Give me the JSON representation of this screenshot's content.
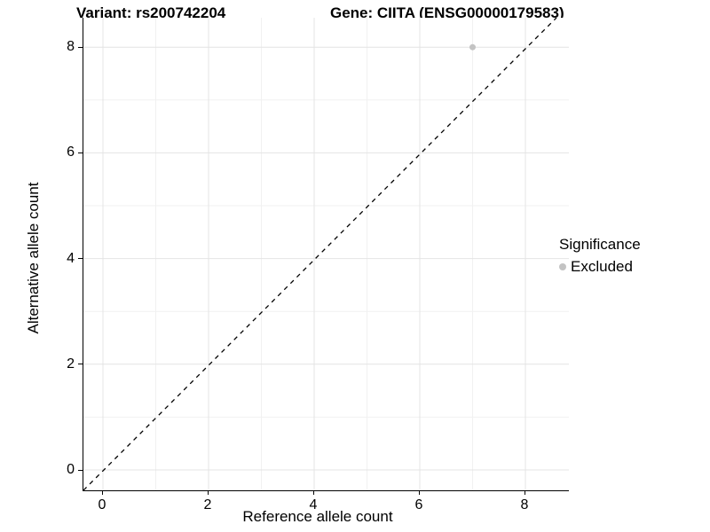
{
  "chart_data": {
    "type": "scatter",
    "titles": {
      "left": "Variant: rs200742204",
      "right": "Gene: CIITA (ENSG00000179583)"
    },
    "xlabel": "Reference allele count",
    "ylabel": "Alternative allele count",
    "x_ticks": [
      0,
      2,
      4,
      6,
      8
    ],
    "y_ticks": [
      0,
      2,
      4,
      6,
      8
    ],
    "x_minor_ticks": [
      1,
      3,
      5,
      7
    ],
    "y_minor_ticks": [
      1,
      3,
      5,
      7
    ],
    "xlim": [
      -0.4,
      8.8
    ],
    "ylim": [
      -0.4,
      8.55
    ],
    "grid": true,
    "points": [
      {
        "x": 7,
        "y": 8,
        "series": "Excluded"
      }
    ],
    "reference_line": {
      "type": "identity",
      "slope": 1,
      "intercept": 0,
      "linestyle": "dashed",
      "color": "#000000"
    },
    "legend": {
      "title": "Significance",
      "position": "right",
      "entries": [
        {
          "label": "Excluded",
          "color": "#c3c3c3",
          "marker": "circle"
        }
      ]
    },
    "colors": {
      "point_excluded": "#c3c3c3",
      "grid_major": "#e4e4e4",
      "grid_minor": "#f1f1f1",
      "axis_line": "#000000",
      "background": "#ffffff",
      "text": "#000000"
    }
  }
}
